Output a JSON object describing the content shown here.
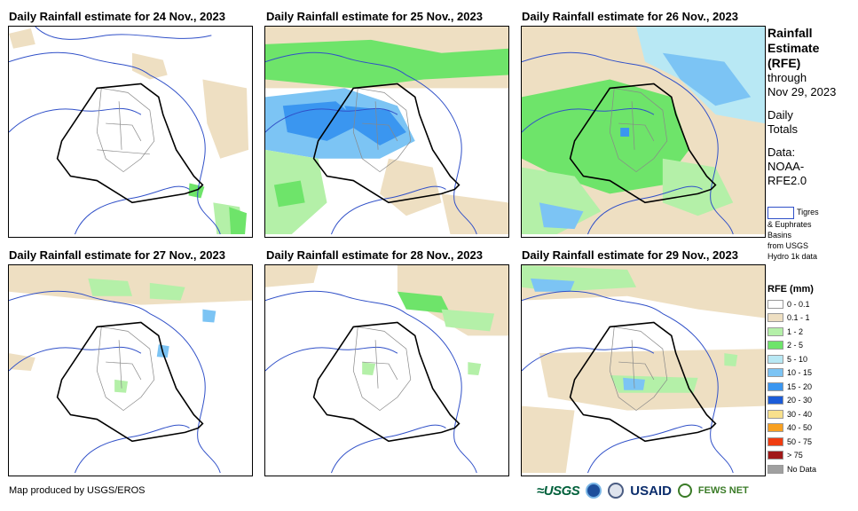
{
  "panels": [
    {
      "title": "Daily Rainfall estimate for 24 Nov., 2023"
    },
    {
      "title": "Daily Rainfall estimate for 25 Nov., 2023"
    },
    {
      "title": "Daily Rainfall estimate for 26 Nov., 2023"
    },
    {
      "title": "Daily Rainfall estimate for 27 Nov., 2023"
    },
    {
      "title": "Daily Rainfall estimate for 28 Nov., 2023"
    },
    {
      "title": "Daily Rainfall estimate for 29 Nov., 2023"
    }
  ],
  "sidebar": {
    "title_line1": "Rainfall",
    "title_line2": "Estimate",
    "title_line3": "(RFE)",
    "through": "through",
    "through_date": "Nov 29, 2023",
    "daily_line1": "Daily",
    "daily_line2": "Totals",
    "data_line1": "Data:",
    "data_line2": "NOAA-",
    "data_line3": "RFE2.0",
    "basin_line1": "Tigres",
    "basin_line2": "& Euphrates",
    "basin_line3": "Basins",
    "basin_line4": "from USGS",
    "basin_line5": "Hydro 1k data",
    "basin_color": "#3050c8"
  },
  "legend": {
    "title": "RFE (mm)",
    "items": [
      {
        "label": "0 - 0.1",
        "color": "#ffffff"
      },
      {
        "label": "0.1 - 1",
        "color": "#eedfc2"
      },
      {
        "label": "1 - 2",
        "color": "#b4f0a8"
      },
      {
        "label": "2 - 5",
        "color": "#6ee46a"
      },
      {
        "label": "5 - 10",
        "color": "#b8e8f4"
      },
      {
        "label": "10 - 15",
        "color": "#7cc4f4"
      },
      {
        "label": "15 - 20",
        "color": "#3a96f0"
      },
      {
        "label": "20 - 30",
        "color": "#1c5cd8"
      },
      {
        "label": "30 - 40",
        "color": "#f8e08c"
      },
      {
        "label": "40 - 50",
        "color": "#f8a020"
      },
      {
        "label": "50 - 75",
        "color": "#f03c10"
      },
      {
        "label": "> 75",
        "color": "#a01818"
      },
      {
        "label": "No Data",
        "color": "#a0a0a0"
      }
    ]
  },
  "footer": {
    "credit": "Map produced by USGS/EROS",
    "logo_usgs": "≈USGS",
    "logo_usaid": "USAID",
    "logo_fews": "FEWS NET"
  }
}
